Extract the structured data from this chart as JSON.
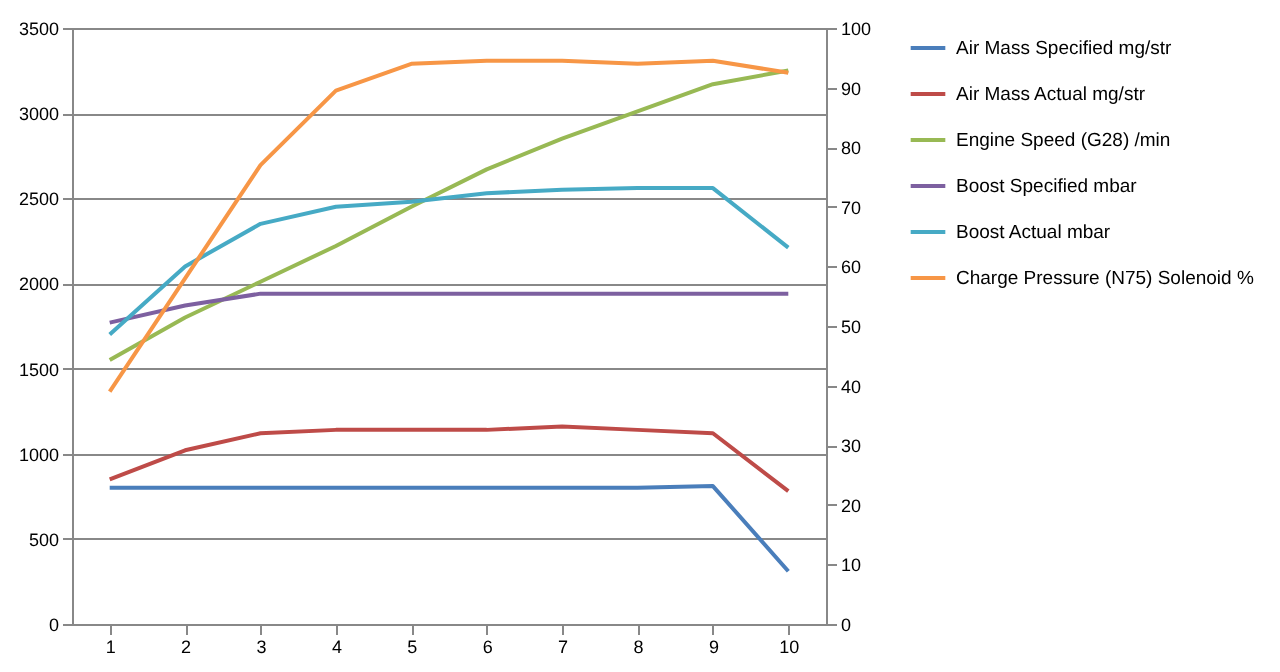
{
  "chart_data": {
    "type": "line",
    "categories": [
      "1",
      "2",
      "3",
      "4",
      "5",
      "6",
      "7",
      "8",
      "9",
      "10"
    ],
    "series": [
      {
        "name": "Air Mass Specified  mg/str",
        "color": "#4a7ebb",
        "values": [
          800,
          800,
          800,
          800,
          800,
          800,
          800,
          800,
          810,
          310
        ]
      },
      {
        "name": "Air Mass Actual  mg/str",
        "color": "#be4b48",
        "values": [
          850,
          1020,
          1120,
          1140,
          1140,
          1140,
          1160,
          1140,
          1120,
          780
        ]
      },
      {
        "name": "Engine Speed (G28)  /min",
        "color": "#98b954",
        "values": [
          1550,
          1800,
          2010,
          2220,
          2450,
          2670,
          2850,
          3010,
          3170,
          3250
        ]
      },
      {
        "name": "Boost Specified  mbar",
        "color": "#7d60a0",
        "values": [
          1770,
          1870,
          1940,
          1940,
          1940,
          1940,
          1940,
          1940,
          1940,
          1940
        ]
      },
      {
        "name": "Boost Actual  mbar",
        "color": "#46aac5",
        "values": [
          1700,
          2100,
          2350,
          2450,
          2480,
          2530,
          2550,
          2560,
          2560,
          2210
        ]
      },
      {
        "name": "Charge Pressure (N75) Solenoid  %",
        "color": "#f79646",
        "axis": "y2",
        "values": [
          39,
          58,
          77,
          89.5,
          94,
          94.5,
          94.5,
          94,
          94.5,
          92.5
        ]
      }
    ],
    "ylim": [
      0,
      3500
    ],
    "yticks": [
      0,
      500,
      1000,
      1500,
      2000,
      2500,
      3000,
      3500
    ],
    "y2lim": [
      0,
      100
    ],
    "y2ticks": [
      0,
      10,
      20,
      30,
      40,
      50,
      60,
      70,
      80,
      90,
      100
    ],
    "grid": "y",
    "legend": "right"
  }
}
